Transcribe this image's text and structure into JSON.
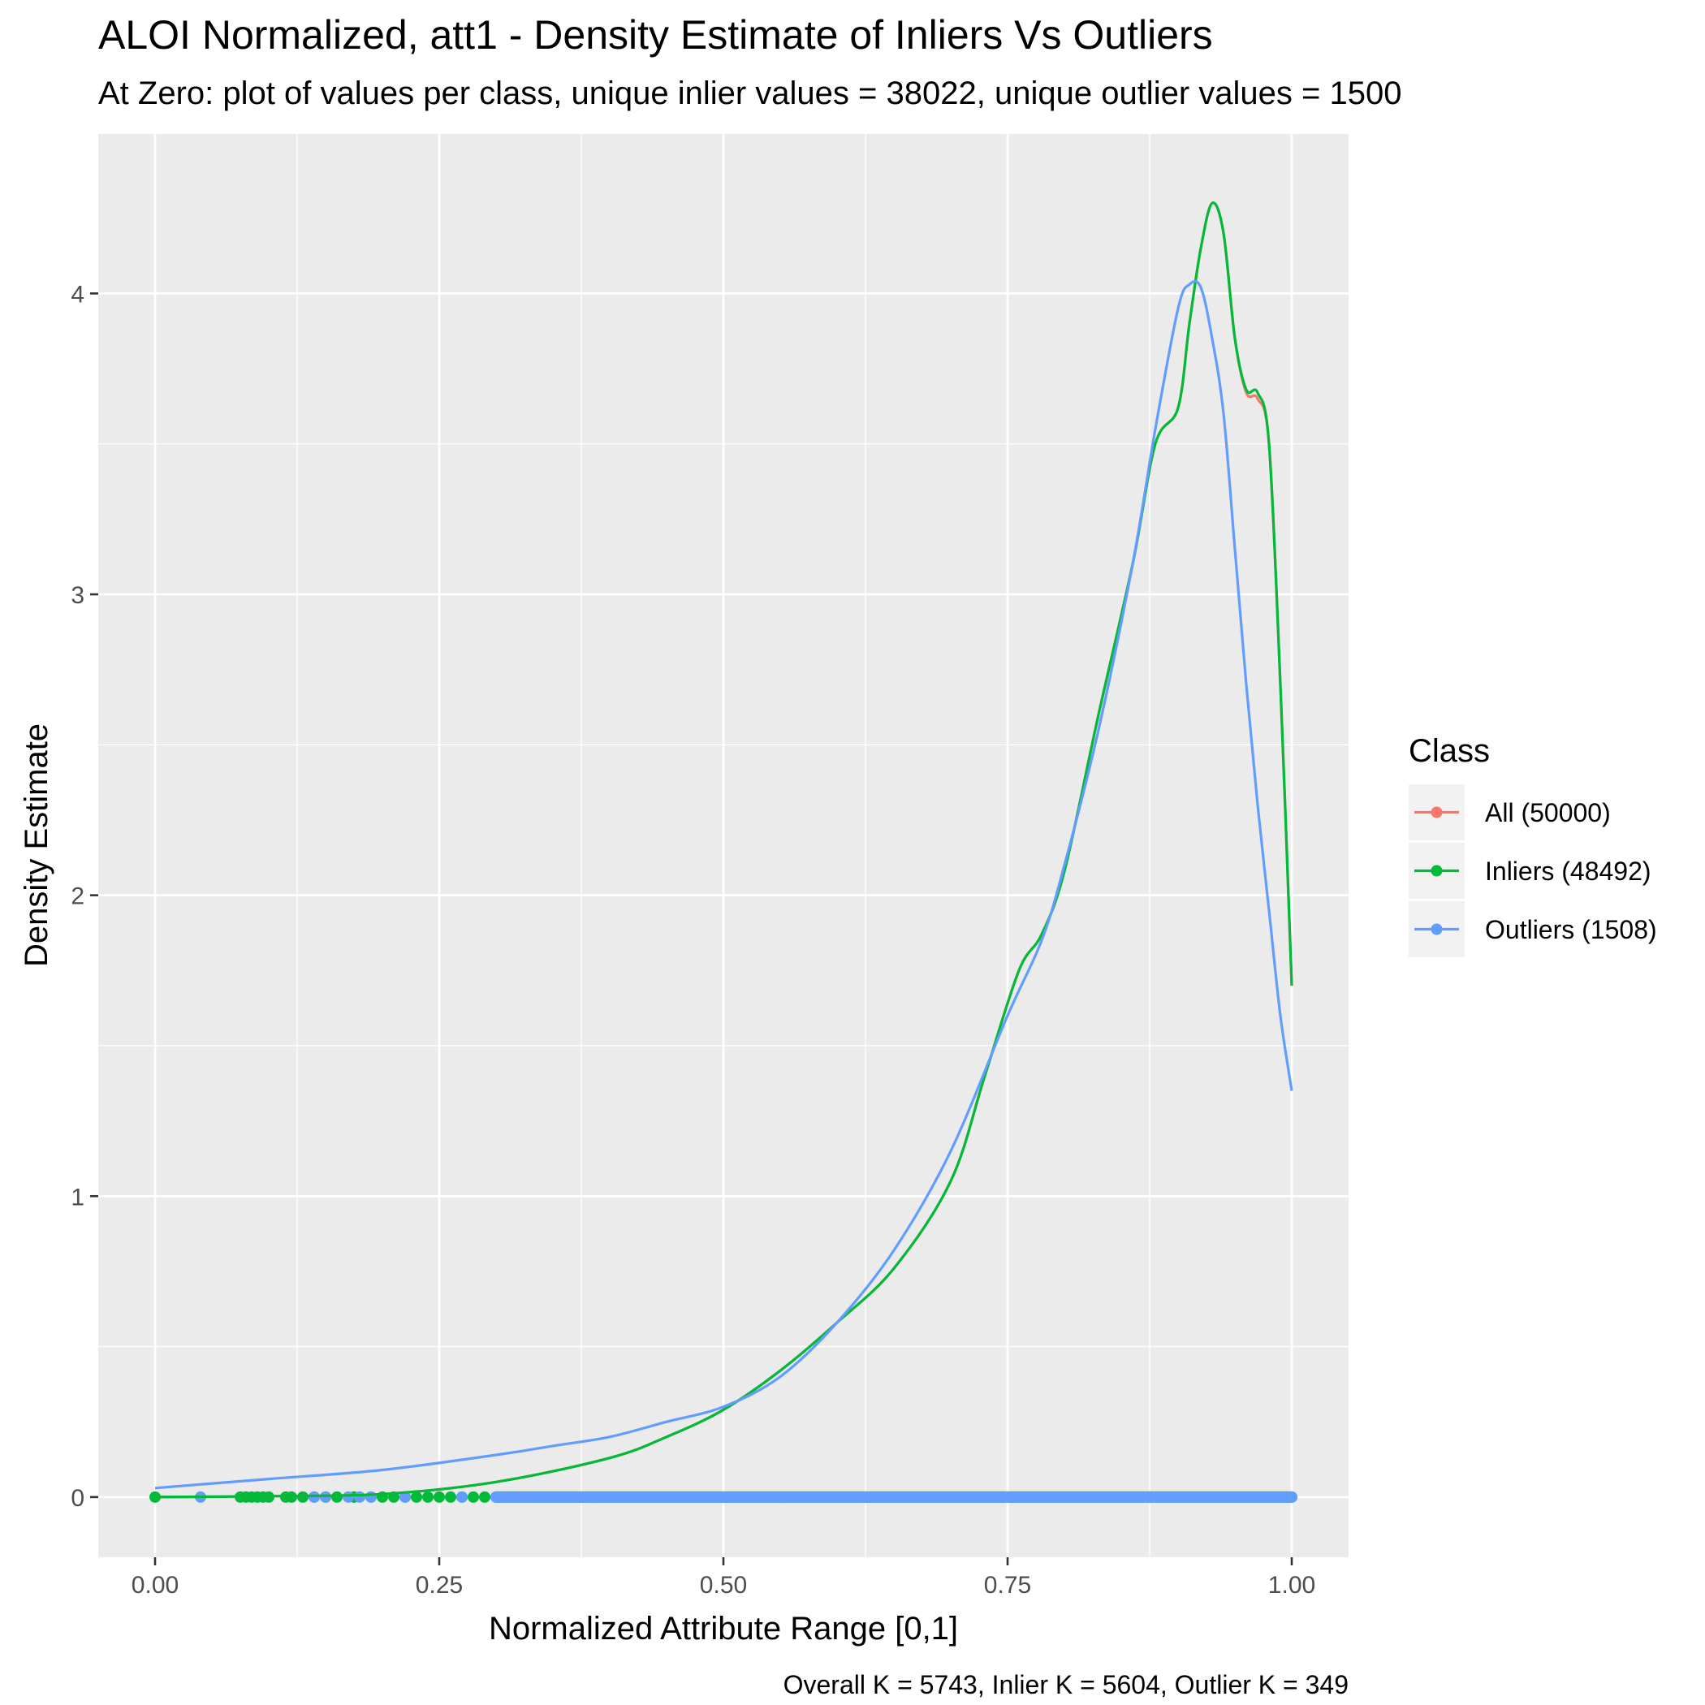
{
  "chart_data": {
    "type": "line",
    "title": "ALOI Normalized, att1 - Density Estimate of Inliers Vs Outliers",
    "subtitle": "At Zero: plot of values per class, unique inlier values = 38022, unique outlier values = 1500",
    "xlabel": "Normalized Attribute Range [0,1]",
    "ylabel": "Density Estimate",
    "caption": "Overall K = 5743, Inlier K = 5604, Outlier K = 349",
    "xlim": [
      -0.05,
      1.05
    ],
    "ylim": [
      -0.2,
      4.53
    ],
    "x_ticks": [
      0,
      0.25,
      0.5,
      0.75,
      1.0
    ],
    "x_tick_labels": [
      "0.00",
      "0.25",
      "0.50",
      "0.75",
      "1.00"
    ],
    "y_ticks": [
      0,
      1,
      2,
      3,
      4
    ],
    "y_tick_labels": [
      "0",
      "1",
      "2",
      "3",
      "4"
    ],
    "grid": true,
    "legend": {
      "title": "Class",
      "position": "right",
      "entries": [
        "All (50000)",
        "Inliers (48492)",
        "Outliers (1508)"
      ]
    },
    "colors": {
      "all": "#F8766D",
      "inliers": "#00BA38",
      "outliers": "#619CFF",
      "panel": "#EBEBEB",
      "grid": "#FFFFFF"
    },
    "series": [
      {
        "name": "All (50000)",
        "color": "#F8766D",
        "x": [
          0,
          0.1,
          0.2,
          0.3,
          0.4,
          0.45,
          0.5,
          0.55,
          0.6,
          0.65,
          0.7,
          0.73,
          0.76,
          0.78,
          0.8,
          0.83,
          0.86,
          0.88,
          0.9,
          0.91,
          0.92,
          0.93,
          0.94,
          0.95,
          0.96,
          0.97,
          0.98,
          0.99,
          1.0
        ],
        "y": [
          0.0,
          0.003,
          0.01,
          0.05,
          0.13,
          0.2,
          0.29,
          0.42,
          0.58,
          0.76,
          1.05,
          1.4,
          1.75,
          1.87,
          2.08,
          2.6,
          3.1,
          3.5,
          3.62,
          3.9,
          4.15,
          4.3,
          4.2,
          3.85,
          3.67,
          3.65,
          3.5,
          2.7,
          1.7
        ]
      },
      {
        "name": "Inliers (48492)",
        "color": "#00BA38",
        "x": [
          0,
          0.1,
          0.2,
          0.3,
          0.4,
          0.45,
          0.5,
          0.55,
          0.6,
          0.65,
          0.7,
          0.73,
          0.76,
          0.78,
          0.8,
          0.83,
          0.86,
          0.88,
          0.9,
          0.91,
          0.92,
          0.93,
          0.94,
          0.95,
          0.96,
          0.97,
          0.98,
          0.99,
          1.0
        ],
        "y": [
          0.0,
          0.003,
          0.01,
          0.05,
          0.13,
          0.2,
          0.29,
          0.42,
          0.58,
          0.76,
          1.05,
          1.4,
          1.75,
          1.87,
          2.08,
          2.6,
          3.1,
          3.5,
          3.62,
          3.9,
          4.15,
          4.3,
          4.2,
          3.85,
          3.68,
          3.67,
          3.5,
          2.7,
          1.7
        ]
      },
      {
        "name": "Outliers (1508)",
        "color": "#619CFF",
        "x": [
          0,
          0.1,
          0.2,
          0.3,
          0.35,
          0.4,
          0.45,
          0.5,
          0.55,
          0.6,
          0.65,
          0.7,
          0.75,
          0.78,
          0.8,
          0.83,
          0.86,
          0.88,
          0.9,
          0.91,
          0.92,
          0.93,
          0.94,
          0.95,
          0.96,
          0.97,
          0.98,
          0.99,
          1.0
        ],
        "y": [
          0.03,
          0.06,
          0.09,
          0.14,
          0.17,
          0.2,
          0.25,
          0.3,
          0.4,
          0.58,
          0.82,
          1.15,
          1.6,
          1.85,
          2.1,
          2.55,
          3.1,
          3.55,
          3.95,
          4.03,
          4.02,
          3.85,
          3.6,
          3.15,
          2.7,
          2.3,
          1.95,
          1.6,
          1.35
        ]
      }
    ],
    "rug": {
      "y": 0,
      "inliers_x": [
        0.0,
        0.075,
        0.08,
        0.085,
        0.09,
        0.095,
        0.1,
        0.115,
        0.12,
        0.13,
        0.14,
        0.15,
        0.16,
        0.175,
        0.19,
        0.2,
        0.21,
        0.22,
        0.23,
        0.24,
        0.25,
        0.26,
        0.27,
        0.28,
        0.29,
        0.385,
        0.55
      ],
      "inliers_dense_range": [
        0.3,
        1.0
      ],
      "outliers_x": [
        0.04,
        0.14,
        0.15,
        0.17,
        0.18,
        0.19,
        0.22,
        0.27,
        0.3
      ],
      "outliers_dense_range": [
        0.3,
        1.0
      ]
    }
  }
}
